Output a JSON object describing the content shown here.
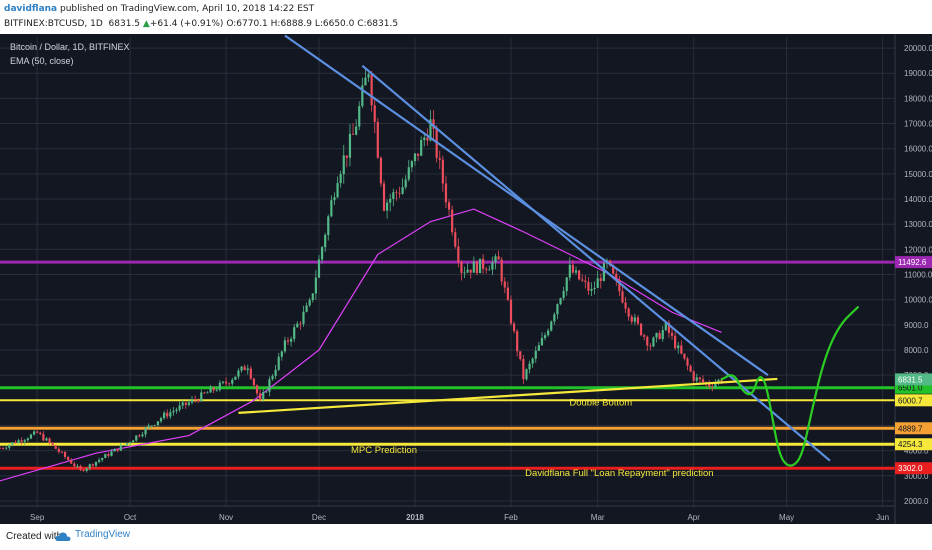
{
  "header": {
    "author": "davidflana",
    "published_text": "published on TradingView.com, April 10, 2018 14:22 EST",
    "symbol": "BITFINEX:BTCUSD, 1D",
    "last": "6831.5",
    "change_arrow": "▲",
    "change": "+61.4 (+0.91%)",
    "ohlc": {
      "o": "O:6770.1",
      "h": "H:6888.9",
      "l": "L:6650.0",
      "c": "C:6831.5"
    }
  },
  "legend": {
    "title": "Bitcoin / Dollar, 1D, BITFINEX",
    "indicator": "EMA (50, close)"
  },
  "footer": {
    "created_with": "Created with",
    "brand": "TradingView"
  },
  "colors": {
    "background": "#131722",
    "grid": "#2a2e39",
    "candle_up": "#53b987",
    "candle_down": "#eb4d5c",
    "ema": "#e040fb",
    "trend_lines": "#5b8fe0",
    "purple_level": "#9c27b0",
    "green_level": "#22c22b",
    "yellow_level": "#f5e83b",
    "orange_level": "#f5a033",
    "red_level": "#e91e1e",
    "forecast_path": "#2ccd23"
  },
  "chart_data": {
    "type": "candlestick",
    "title": "Bitcoin / Dollar, 1D, BITFINEX",
    "x_ticks": [
      "Sep",
      "Oct",
      "Nov",
      "Dec",
      "2018",
      "Feb",
      "Mar",
      "Apr",
      "May",
      "Jun"
    ],
    "x_range": [
      "2017-08-20",
      "2018-06-05"
    ],
    "y_ticks": [
      2000,
      3000,
      4000,
      5000,
      6000,
      7000,
      8000,
      9000,
      10000,
      11000,
      12000,
      13000,
      14000,
      15000,
      16000,
      17000,
      18000,
      19000,
      20000
    ],
    "ylim": [
      1800,
      20400
    ],
    "grid": true,
    "series": [
      {
        "name": "BTCUSD",
        "type": "candlestick",
        "close_path": [
          [
            "2017-08-20",
            4100
          ],
          [
            "2017-09-01",
            4700
          ],
          [
            "2017-09-05",
            4300
          ],
          [
            "2017-09-15",
            3200
          ],
          [
            "2017-09-30",
            4300
          ],
          [
            "2017-10-12",
            5400
          ],
          [
            "2017-10-20",
            5900
          ],
          [
            "2017-11-01",
            6700
          ],
          [
            "2017-11-08",
            7400
          ],
          [
            "2017-11-12",
            5900
          ],
          [
            "2017-11-20",
            8200
          ],
          [
            "2017-11-28",
            9800
          ],
          [
            "2017-12-07",
            15000
          ],
          [
            "2017-12-12",
            16500
          ],
          [
            "2017-12-17",
            19200
          ],
          [
            "2017-12-22",
            13800
          ],
          [
            "2017-12-28",
            14500
          ],
          [
            "2018-01-06",
            17000
          ],
          [
            "2018-01-16",
            11200
          ],
          [
            "2018-01-28",
            11500
          ],
          [
            "2018-02-05",
            6900
          ],
          [
            "2018-02-12",
            8600
          ],
          [
            "2018-02-20",
            11200
          ],
          [
            "2018-02-27",
            10300
          ],
          [
            "2018-03-04",
            11400
          ],
          [
            "2018-03-12",
            9300
          ],
          [
            "2018-03-18",
            8200
          ],
          [
            "2018-03-23",
            8900
          ],
          [
            "2018-04-01",
            6900
          ],
          [
            "2018-04-06",
            6600
          ],
          [
            "2018-04-10",
            6831.5
          ]
        ]
      },
      {
        "name": "EMA (50, close)",
        "type": "line",
        "points": [
          [
            "2017-08-20",
            2800
          ],
          [
            "2017-09-20",
            3900
          ],
          [
            "2017-10-20",
            4600
          ],
          [
            "2017-11-10",
            6000
          ],
          [
            "2017-12-01",
            8000
          ],
          [
            "2017-12-20",
            11800
          ],
          [
            "2018-01-06",
            13100
          ],
          [
            "2018-01-20",
            13600
          ],
          [
            "2018-02-05",
            12700
          ],
          [
            "2018-02-20",
            11800
          ],
          [
            "2018-03-05",
            11000
          ],
          [
            "2018-03-25",
            9500
          ],
          [
            "2018-04-10",
            8700
          ]
        ]
      }
    ],
    "levels": [
      {
        "value": 11492.6,
        "label": "11492.6"
      },
      {
        "value": 6501.0,
        "label": "6501.0"
      },
      {
        "value": 6000.7,
        "label": "6000.7"
      },
      {
        "value": 4889.7,
        "label": "4889.7"
      },
      {
        "value": 4254.3,
        "label": "4254.3"
      },
      {
        "value": 3302.0,
        "label": "3302.0"
      }
    ],
    "last_price": {
      "value": 6831.5,
      "label": "6831.5"
    },
    "trend_lines": [
      {
        "from": [
          "2017-11-20",
          20500
        ],
        "to": [
          "2018-04-25",
          7000
        ]
      },
      {
        "from": [
          "2017-12-15",
          19300
        ],
        "to": [
          "2018-05-15",
          3600
        ]
      },
      {
        "from": [
          "2017-11-05",
          5500
        ],
        "to": [
          "2018-04-28",
          6850
        ]
      }
    ],
    "annotations": [
      {
        "text": "Double Bottom",
        "date": "2018-03-02",
        "value": 5800
      },
      {
        "text": "MPC Prediction",
        "date": "2017-12-22",
        "value": 3900
      },
      {
        "text": "Davidflana Full \"Loan Repayment\" prediction",
        "date": "2018-03-08",
        "value": 3000
      }
    ],
    "forecast_path": [
      [
        "2018-04-10",
        6831
      ],
      [
        "2018-04-14",
        7100
      ],
      [
        "2018-04-17",
        6300
      ],
      [
        "2018-04-20",
        6200
      ],
      [
        "2018-04-22",
        7000
      ],
      [
        "2018-04-24",
        6800
      ],
      [
        "2018-04-26",
        5600
      ],
      [
        "2018-04-28",
        4200
      ],
      [
        "2018-04-30",
        3500
      ],
      [
        "2018-05-03",
        3350
      ],
      [
        "2018-05-06",
        3800
      ],
      [
        "2018-05-09",
        5500
      ],
      [
        "2018-05-13",
        7600
      ],
      [
        "2018-05-18",
        9000
      ],
      [
        "2018-05-24",
        9700
      ]
    ]
  }
}
